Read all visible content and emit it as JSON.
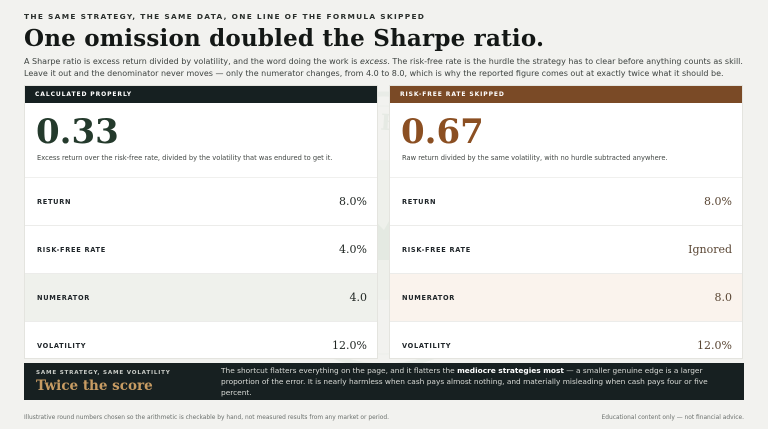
{
  "header": {
    "eyebrow": "THE SAME STRATEGY, THE SAME DATA, ONE LINE OF THE FORMULA SKIPPED",
    "title": "One omission doubled the Sharpe ratio.",
    "lede_a": "A Sharpe ratio is excess return divided by volatility, and the word doing the work is ",
    "lede_em": "excess",
    "lede_b": ". The risk-free rate is the hurdle the strategy has to clear before anything counts as skill. Leave it out and the denominator never moves — only the numerator changes, from 4.0 to 8.0, which is why the reported figure comes out at exactly twice what it should be."
  },
  "seal": {
    "top_text": "STAYS TO THE SAME PATH",
    "bottom_text": "ONE AT A TIME",
    "color": "#e7ebe5"
  },
  "cards": {
    "left": {
      "label": "CALCULATED PROPERLY",
      "value": "0.33",
      "caption": "Excess return over the risk-free rate, divided by the volatility that was endured to get it.",
      "rows": [
        {
          "label": "RETURN",
          "value": "8.0%"
        },
        {
          "label": "RISK-FREE RATE",
          "value": "4.0%"
        },
        {
          "label": "NUMERATOR",
          "value": "4.0"
        },
        {
          "label": "VOLATILITY",
          "value": "12.0%"
        }
      ]
    },
    "right": {
      "label": "RISK-FREE RATE SKIPPED",
      "value": "0.67",
      "caption": "Raw return divided by the same volatility, with no hurdle subtracted anywhere.",
      "rows": [
        {
          "label": "RETURN",
          "value": "8.0%"
        },
        {
          "label": "RISK-FREE RATE",
          "value": "Ignored"
        },
        {
          "label": "NUMERATOR",
          "value": "8.0"
        },
        {
          "label": "VOLATILITY",
          "value": "12.0%"
        }
      ]
    }
  },
  "banner": {
    "eyebrow": "SAME STRATEGY, SAME VOLATILITY",
    "title": "Twice the score",
    "text_a": "The shortcut flatters everything on the page, and it flatters the ",
    "text_strong": "mediocre strategies most",
    "text_b": " — a smaller genuine edge is a larger proportion of the error. It is nearly harmless when cash pays almost nothing, and materially misleading when cash pays four or five percent."
  },
  "footer": {
    "left": "Illustrative round numbers chosen so the arithmetic is checkable by hand, not measured results from any market or period.",
    "right": "Educational content only — not financial advice."
  }
}
